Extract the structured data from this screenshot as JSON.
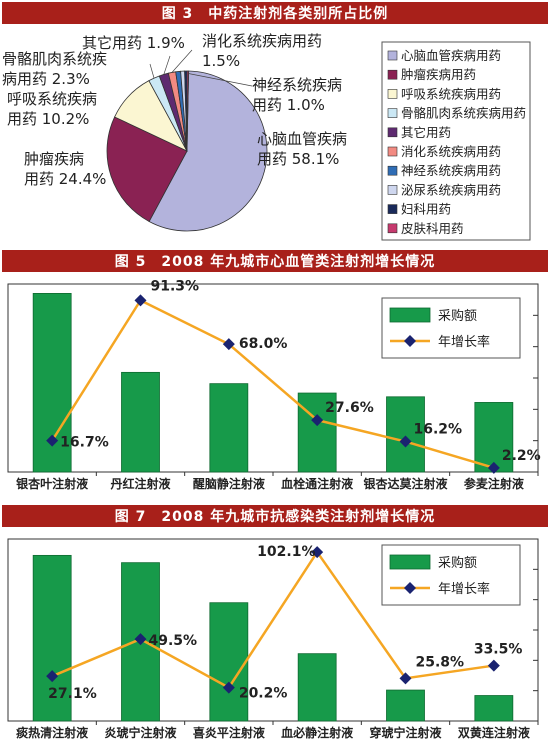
{
  "charts": [
    {
      "banner": "图 3　中药注射剂各类别所占比例",
      "chart_data": {
        "type": "pie",
        "title": "图 3　中药注射剂各类别所占比例",
        "legend_position": "right",
        "slices": [
          {
            "name": "心脑血管疾病用药",
            "value": 58.1,
            "color": "#b3b3dc",
            "label_lines": [
              "心脑血管疾病",
              "用药 58.1%"
            ]
          },
          {
            "name": "肿瘤疾病用药",
            "value": 24.4,
            "color": "#8a2253",
            "label_lines": [
              "肿瘤疾病",
              "用药 24.4%"
            ]
          },
          {
            "name": "呼吸系统疾病用药",
            "value": 10.2,
            "color": "#fbf6d2",
            "label_lines": [
              "呼吸系统疾病",
              "用药 10.2%"
            ]
          },
          {
            "name": "骨骼肌肉系统疾病用药",
            "value": 2.3,
            "color": "#cbe8f5",
            "label_lines": [
              "骨骼肌肉系统疾",
              "病用药 2.3%"
            ]
          },
          {
            "name": "其它用药",
            "value": 1.9,
            "color": "#5e2a70",
            "label_lines": [
              "其它用药 1.9%"
            ]
          },
          {
            "name": "消化系统疾病用药",
            "value": 1.5,
            "color": "#f28a82",
            "label_lines": [
              "消化系统疾病用药",
              "1.5%"
            ]
          },
          {
            "name": "神经系统疾病用药",
            "value": 1.0,
            "color": "#2f6db5",
            "label_lines": [
              "神经系统疾病",
              "用药 1.0%"
            ]
          },
          {
            "name": "泌尿系统疾病用药",
            "value": 0.8,
            "color": "#cfd7ef",
            "label_lines": []
          },
          {
            "name": "妇科用药",
            "value": 0.5,
            "color": "#1a2a5a",
            "label_lines": []
          },
          {
            "name": "皮肤科用药",
            "value": 0.3,
            "color": "#c63a6e",
            "label_lines": []
          }
        ]
      }
    },
    {
      "banner": "图 5　2008 年九城市心血管类注射剂增长情况",
      "chart_data": {
        "type": "bar",
        "title": "图 5　2008 年九城市心血管类注射剂增长情况",
        "categories": [
          "银杏叶注射液",
          "丹红注射液",
          "醒脑静注射液",
          "血栓通注射液",
          "银杏达莫注射液",
          "参麦注射液"
        ],
        "series": [
          {
            "name": "采购额",
            "kind": "bar",
            "relative_heights": [
              0.95,
              0.53,
              0.47,
              0.42,
              0.4,
              0.37
            ],
            "color": "#179a4a"
          },
          {
            "name": "年增长率",
            "kind": "line",
            "unit": "%",
            "values": [
              16.7,
              91.3,
              68.0,
              27.6,
              16.2,
              2.2
            ],
            "color": "#f5a623"
          }
        ],
        "growth_range": [
          0,
          100
        ],
        "legend_position": "top-right"
      }
    },
    {
      "banner": "图 7　2008 年九城市抗感染类注射剂增长情况",
      "chart_data": {
        "type": "bar",
        "title": "图 7　2008 年九城市抗感染类注射剂增长情况",
        "categories": [
          "痰热清注射液",
          "炎琥宁注射液",
          "喜炎平注射液",
          "血必静注射液",
          "穿琥宁注射液",
          "双黄连注射液"
        ],
        "series": [
          {
            "name": "采购额",
            "kind": "bar",
            "relative_heights": [
              0.91,
              0.87,
              0.65,
              0.37,
              0.17,
              0.14
            ],
            "color": "#179a4a"
          },
          {
            "name": "年增长率",
            "kind": "line",
            "unit": "%",
            "values": [
              27.1,
              49.5,
              20.2,
              102.1,
              25.8,
              33.5
            ],
            "color": "#f5a623"
          }
        ],
        "growth_range": [
          0,
          110
        ],
        "legend_position": "top-right"
      }
    }
  ]
}
